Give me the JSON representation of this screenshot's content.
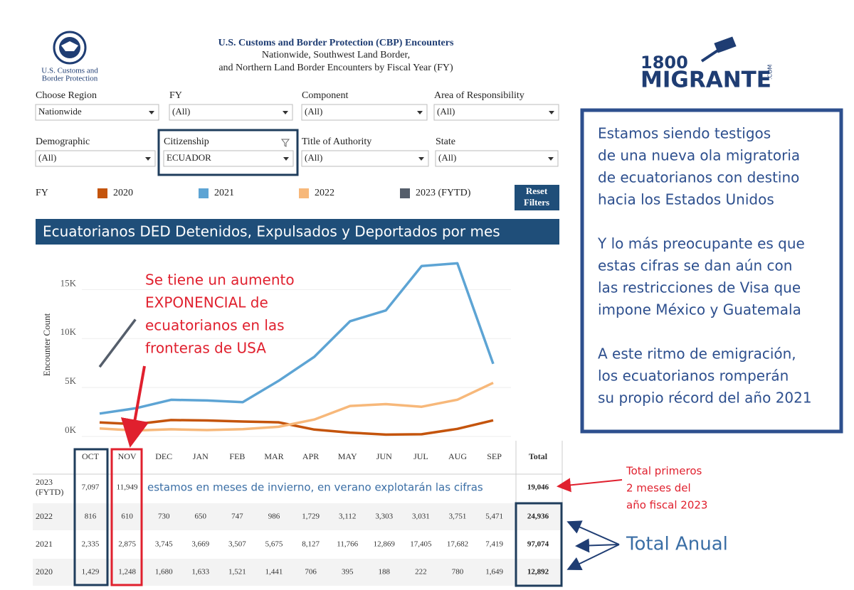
{
  "header": {
    "agency_lines": [
      "U.S. Customs and",
      "Border Protection"
    ],
    "title": "U.S. Customs and Border Protection (CBP) Encounters",
    "subtitle_lines": [
      "Nationwide, Southwest Land Border,",
      "and Northern Land Border Encounters by Fiscal Year (FY)"
    ]
  },
  "filters": [
    {
      "label": "Choose Region",
      "value": "Nationwide"
    },
    {
      "label": "FY",
      "value": "(All)"
    },
    {
      "label": "Component",
      "value": "(All)"
    },
    {
      "label": "Area of Responsibility",
      "value": "(All)"
    },
    {
      "label": "Demographic",
      "value": "(All)"
    },
    {
      "label": "Citizenship",
      "value": "ECUADOR"
    },
    {
      "label": "Title of Authority",
      "value": "(All)"
    },
    {
      "label": "State",
      "value": "(All)"
    }
  ],
  "legend_title": "FY",
  "reset_button": [
    "Reset",
    "Filters"
  ],
  "brand": {
    "number": "1800",
    "name": "MIGRANTE",
    "suffix": ".COM"
  },
  "chart_data": {
    "type": "line",
    "title": "Ecuatorianos DED Detenidos, Expulsados y Deportados por mes",
    "y_label": "Encounter Count",
    "categories": [
      "OCT",
      "NOV",
      "DEC",
      "JAN",
      "FEB",
      "MAR",
      "APR",
      "MAY",
      "JUN",
      "JUL",
      "AUG",
      "SEP"
    ],
    "ylim": [
      0,
      18000
    ],
    "yticks": [
      {
        "value": 0,
        "label": "0K"
      },
      {
        "value": 5000,
        "label": "5K"
      },
      {
        "value": 10000,
        "label": "10K"
      },
      {
        "value": 15000,
        "label": "15K"
      }
    ],
    "grid": true,
    "series": [
      {
        "name": "2020",
        "color": "#c4540c",
        "values": [
          1429,
          1248,
          1680,
          1633,
          1521,
          1441,
          706,
          395,
          188,
          222,
          780,
          1649
        ],
        "value_labels": [
          "1,429",
          "1,248",
          "1,680",
          "1,633",
          "1,521",
          "1,441",
          "706",
          "395",
          "188",
          "222",
          "780",
          "1,649"
        ]
      },
      {
        "name": "2021",
        "color": "#5da4d4",
        "values": [
          2335,
          2875,
          3745,
          3669,
          3507,
          5675,
          8127,
          11766,
          12869,
          17405,
          17682,
          7419
        ],
        "value_labels": [
          "2,335",
          "2,875",
          "3,745",
          "3,669",
          "3,507",
          "5,675",
          "8,127",
          "11,766",
          "12,869",
          "17,405",
          "17,682",
          "7,419"
        ]
      },
      {
        "name": "2022",
        "color": "#f7b87a",
        "values": [
          816,
          610,
          730,
          650,
          747,
          986,
          1729,
          3112,
          3303,
          3031,
          3751,
          5471
        ],
        "value_labels": [
          "816",
          "610",
          "730",
          "650",
          "747",
          "986",
          "1,729",
          "3,112",
          "3,303",
          "3,031",
          "3,751",
          "5,471"
        ]
      },
      {
        "name": "2023 (FYTD)",
        "color": "#555e6b",
        "values": [
          7097,
          11949,
          null,
          null,
          null,
          null,
          null,
          null,
          null,
          null,
          null,
          null
        ],
        "value_labels": [
          "7,097",
          "11,949",
          null,
          null,
          null,
          null,
          null,
          null,
          null,
          null,
          null,
          null
        ]
      }
    ]
  },
  "table": {
    "row_labels": [
      "2020",
      "2021",
      "2022",
      [
        "2023",
        "(FYTD)"
      ]
    ],
    "total_header": "Total",
    "totals": [
      "12,892",
      "97,074",
      "24,936",
      "19,046"
    ]
  },
  "annotations": {
    "chart_note": [
      "Se tiene un aumento",
      "EXPONENCIAL de",
      "ecuatorianos en las",
      "fronteras de USA"
    ],
    "row_note": "estamos en meses de invierno, en verano explotarán las cifras",
    "total_note": [
      "Total primeros",
      "2 meses del",
      "año fiscal 2023"
    ],
    "total_annual": "Total Anual"
  },
  "side_box": {
    "paragraphs": [
      [
        "Estamos siendo testigos",
        "de una nueva ola migratoria",
        "de ecuatorianos con destino",
        "hacia los Estados Unidos"
      ],
      [
        "Y lo más preocupante es que",
        "estas cifras se dan aún con",
        "las restricciones de Visa que",
        "impone México y Guatemala"
      ],
      [
        "A este ritmo de emigración,",
        "los ecuatorianos romperán",
        "su propio récord del año 2021"
      ]
    ]
  }
}
